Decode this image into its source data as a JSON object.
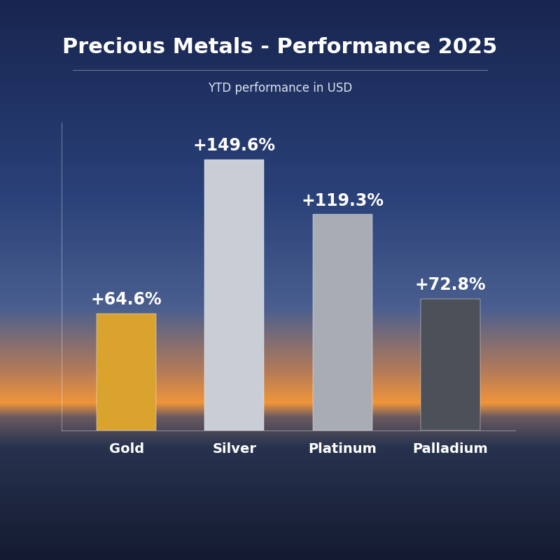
{
  "chart_data": {
    "type": "bar",
    "title": "Precious Metals - Performance 2025",
    "subtitle": "YTD performance in USD",
    "categories": [
      "Gold",
      "Silver",
      "Platinum",
      "Palladium"
    ],
    "values": [
      64.6,
      149.6,
      119.3,
      72.8
    ],
    "value_labels": [
      "+64.6%",
      "+149.6%",
      "+119.3%",
      "+72.8%"
    ],
    "colors": [
      "#d9a32e",
      "#c9ced6",
      "#a8adb5",
      "#4b5059"
    ],
    "ylim": [
      0,
      170
    ],
    "data_labels": true,
    "tick_labels": "x",
    "grid": false
  }
}
